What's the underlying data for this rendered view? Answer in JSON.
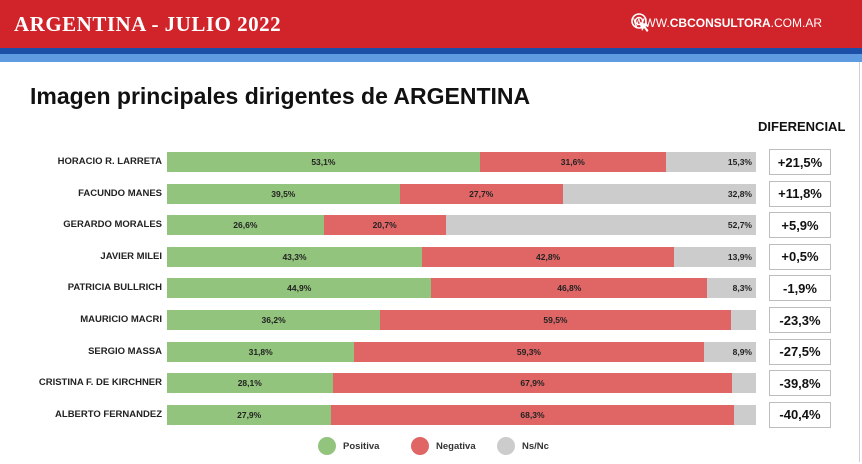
{
  "header": {
    "title": "ARGENTINA - JULIO 2022",
    "site_prefix": "WWW.",
    "site_bold": "CBCONSULTORA",
    "site_suffix": ".COM.AR",
    "icon": "cursor-click-icon",
    "colors": {
      "bar": "#d0232a",
      "stripe_dark": "#1b4fa8",
      "stripe_light": "#5e9be0"
    }
  },
  "chart_data": {
    "type": "bar",
    "orientation": "horizontal",
    "stacked": true,
    "title": "Imagen principales dirigentes de ARGENTINA",
    "diff_header": "DIFERENCIAL",
    "categories": [
      "HORACIO R. LARRETA",
      "FACUNDO MANES",
      "GERARDO MORALES",
      "JAVIER MILEI",
      "PATRICIA BULLRICH",
      "MAURICIO MACRI",
      "SERGIO MASSA",
      "CRISTINA F. DE KIRCHNER",
      "ALBERTO FERNANDEZ"
    ],
    "series": [
      {
        "name": "Positiva",
        "color": "#93c47d",
        "values": [
          53.1,
          39.5,
          26.6,
          43.3,
          44.9,
          36.2,
          31.8,
          28.1,
          27.9
        ],
        "labels": [
          "53,1%",
          "39,5%",
          "26,6%",
          "43,3%",
          "44,9%",
          "36,2%",
          "31,8%",
          "28,1%",
          "27,9%"
        ]
      },
      {
        "name": "Negativa",
        "color": "#e06666",
        "values": [
          31.6,
          27.7,
          20.7,
          42.8,
          46.8,
          59.5,
          59.3,
          67.9,
          68.3
        ],
        "labels": [
          "31,6%",
          "27,7%",
          "20,7%",
          "42,8%",
          "46,8%",
          "59,5%",
          "59,3%",
          "67,9%",
          "68,3%"
        ]
      },
      {
        "name": "Ns/Nc",
        "color": "#cccccc",
        "values": [
          15.3,
          32.8,
          52.7,
          13.9,
          8.3,
          4.3,
          8.9,
          4.0,
          3.8
        ],
        "labels": [
          "15,3%",
          "32,8%",
          "52,7%",
          "13,9%",
          "8,3%",
          "",
          "8,9%",
          "",
          ""
        ]
      }
    ],
    "differential": [
      "+21,5%",
      "+11,8%",
      "+5,9%",
      "+0,5%",
      "-1,9%",
      "-23,3%",
      "-27,5%",
      "-39,8%",
      "-40,4%"
    ],
    "xlim": [
      0,
      100
    ],
    "legend_position": "bottom-center"
  }
}
